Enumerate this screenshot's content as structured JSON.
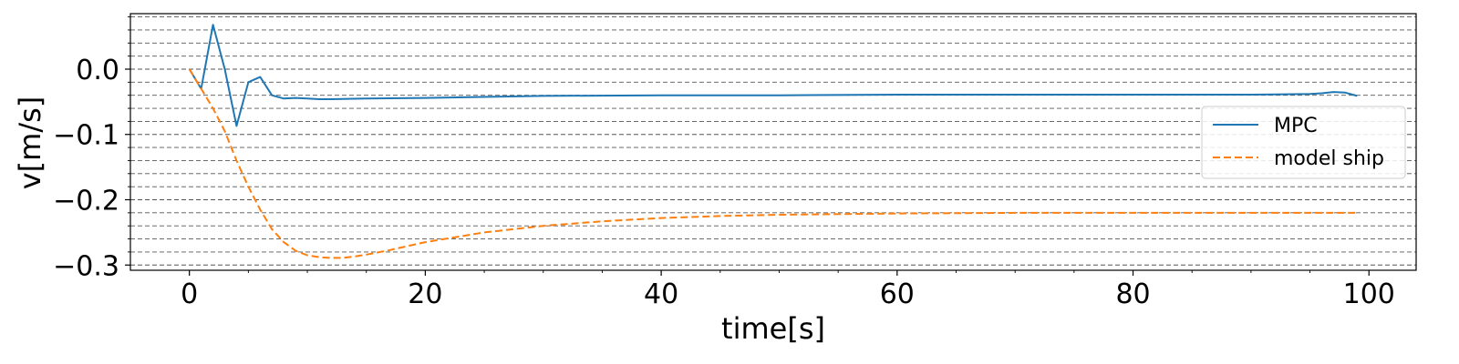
{
  "chart_data": {
    "type": "line",
    "xlabel": "time[s]",
    "ylabel": "v[m/s]",
    "xlim": [
      -5,
      104
    ],
    "ylim": [
      -0.308,
      0.085
    ],
    "xticks": [
      0,
      20,
      40,
      60,
      80,
      100
    ],
    "yticks": [
      0.0,
      -0.1,
      -0.2,
      -0.3
    ],
    "xtick_labels": [
      "0",
      "20",
      "40",
      "60",
      "80",
      "100"
    ],
    "ytick_labels": [
      "0.0",
      "−0.1",
      "−0.2",
      "−0.3"
    ],
    "grid": "y minor dashed",
    "legend_position": "center-right",
    "series": [
      {
        "name": "MPC",
        "color": "#1f77b4",
        "style": "solid",
        "x": [
          0,
          1,
          2,
          3,
          4,
          5,
          6,
          7,
          8,
          9,
          10,
          11,
          12,
          15,
          20,
          30,
          40,
          50,
          60,
          70,
          80,
          90,
          95,
          96,
          97,
          98,
          99
        ],
        "y": [
          0.0,
          -0.03,
          0.068,
          0.0,
          -0.087,
          -0.02,
          -0.012,
          -0.04,
          -0.045,
          -0.044,
          -0.045,
          -0.046,
          -0.046,
          -0.045,
          -0.044,
          -0.041,
          -0.04,
          -0.04,
          -0.039,
          -0.039,
          -0.039,
          -0.039,
          -0.038,
          -0.037,
          -0.035,
          -0.036,
          -0.041
        ]
      },
      {
        "name": "model ship",
        "color": "#ff7f0e",
        "style": "dashed",
        "x": [
          0,
          1,
          2,
          3,
          4,
          5,
          6,
          7,
          8,
          9,
          10,
          11,
          12,
          13,
          14,
          15,
          17,
          20,
          25,
          30,
          35,
          40,
          45,
          50,
          60,
          70,
          80,
          90,
          99
        ],
        "y": [
          0.0,
          -0.03,
          -0.06,
          -0.095,
          -0.14,
          -0.18,
          -0.215,
          -0.245,
          -0.265,
          -0.278,
          -0.285,
          -0.288,
          -0.289,
          -0.289,
          -0.287,
          -0.284,
          -0.277,
          -0.265,
          -0.25,
          -0.24,
          -0.233,
          -0.228,
          -0.225,
          -0.223,
          -0.221,
          -0.22,
          -0.22,
          -0.22,
          -0.22
        ]
      }
    ]
  }
}
